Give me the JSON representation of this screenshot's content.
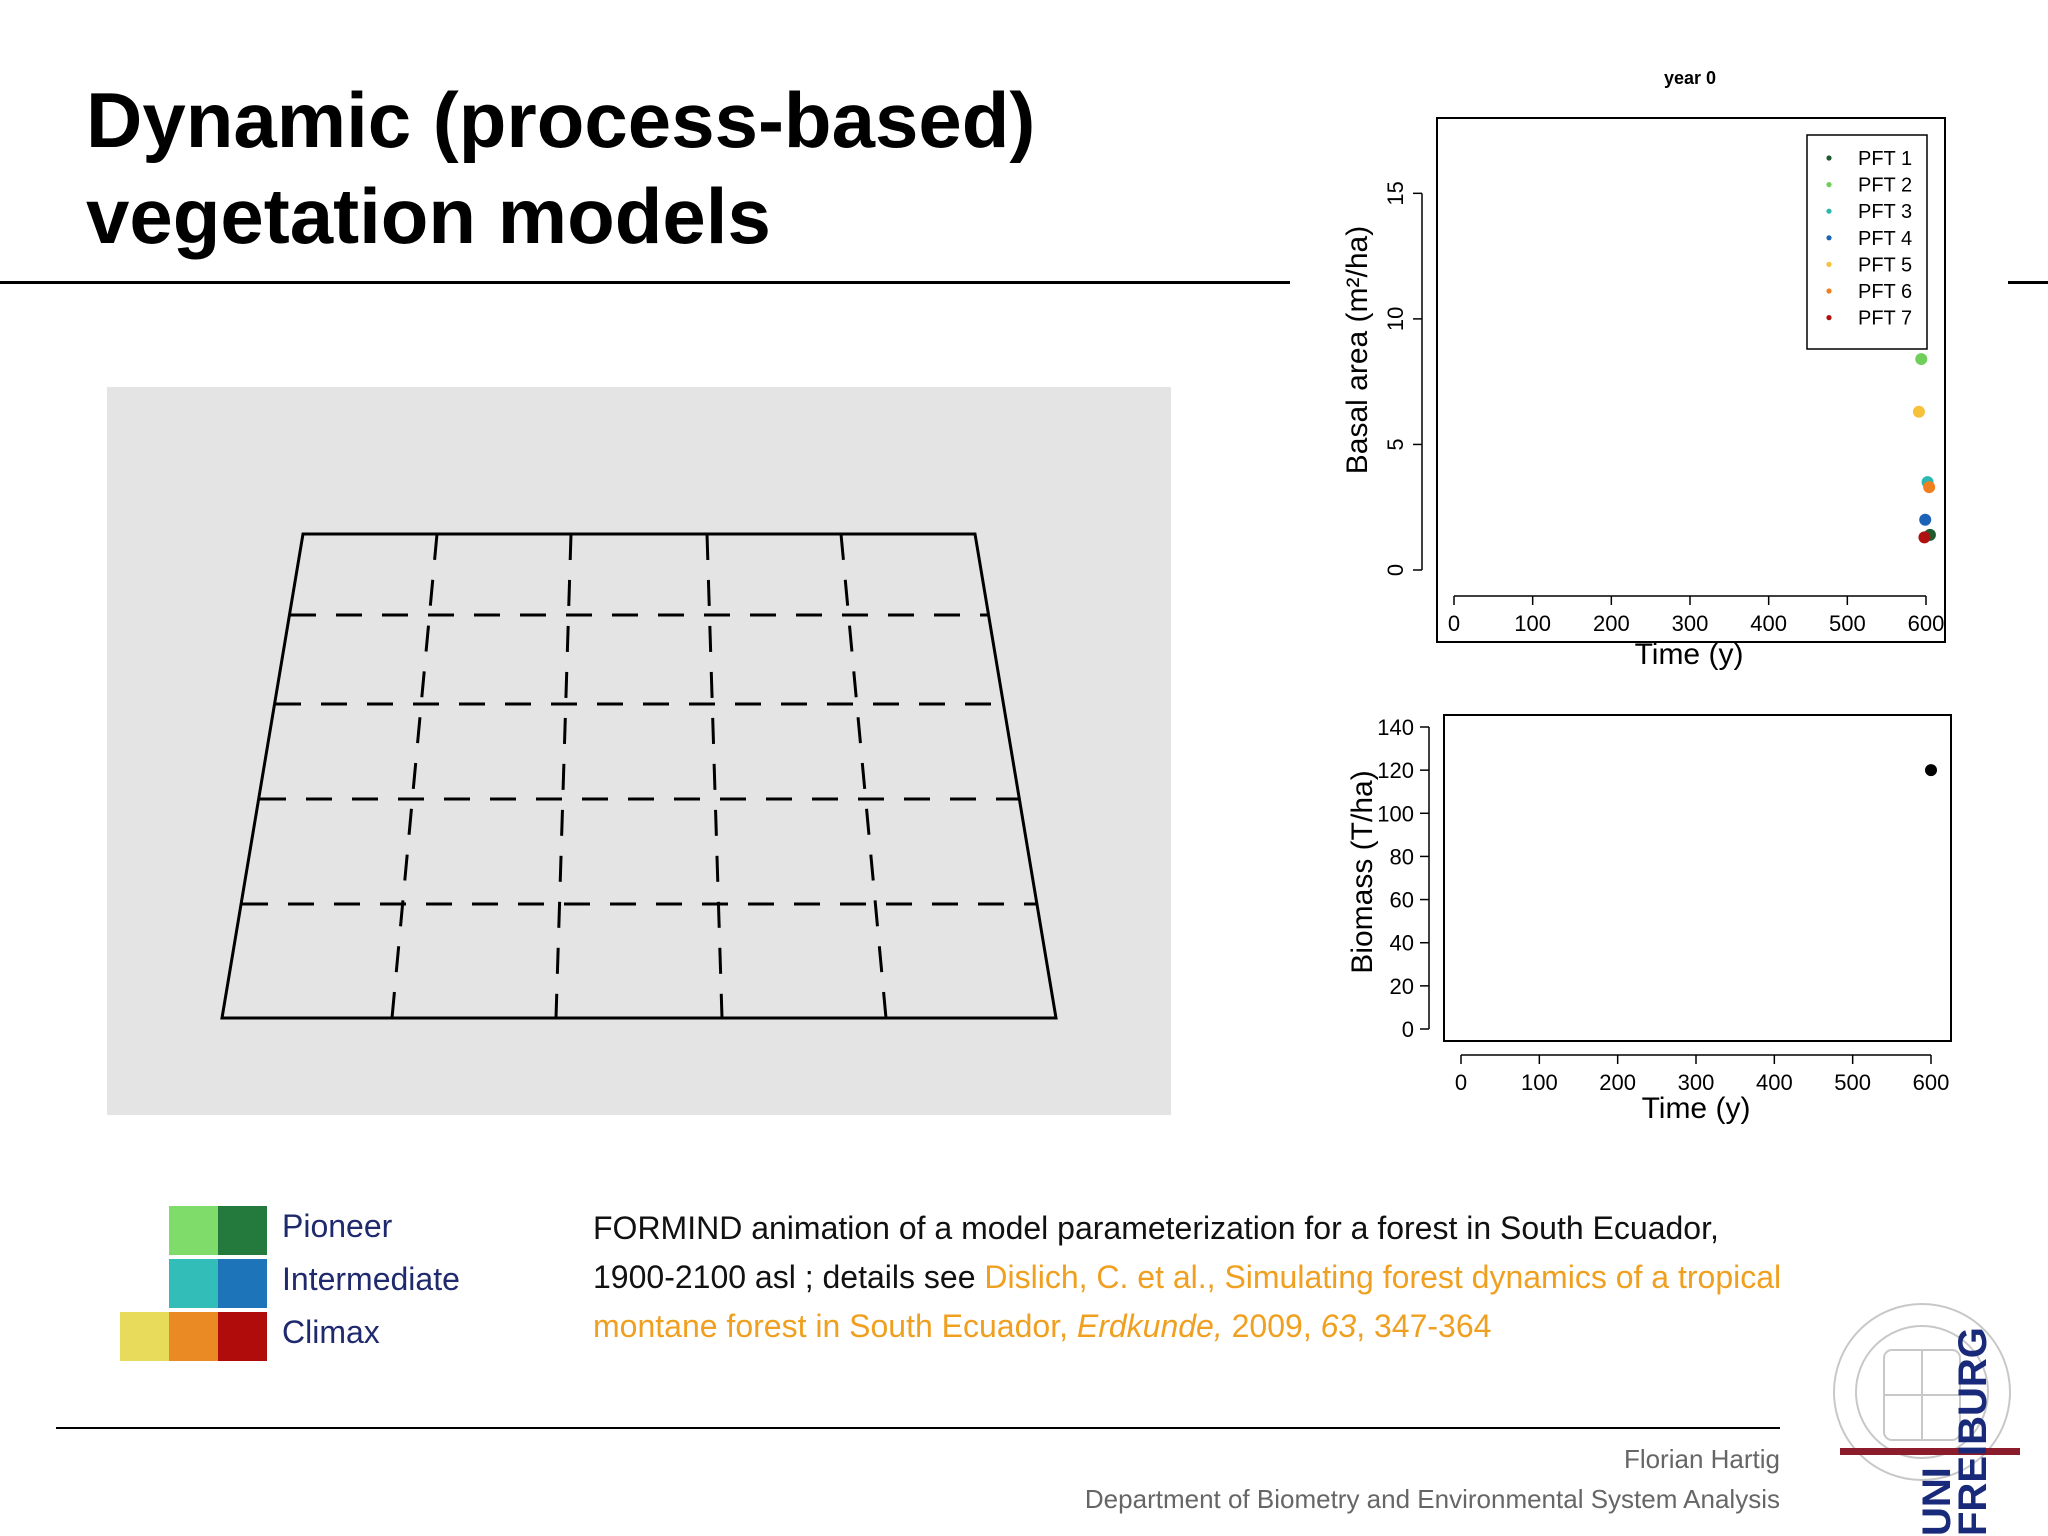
{
  "slide": {
    "title_line1": "Dynamic (process-based)",
    "title_line2": "vegetation models"
  },
  "chart_data": [
    {
      "type": "scatter",
      "title": "year 0",
      "xlabel": "Time (y)",
      "ylabel": "Basal area (m²/ha)",
      "xlim": [
        0,
        600
      ],
      "ylim": [
        0,
        18
      ],
      "xticks": [
        0,
        100,
        200,
        300,
        400,
        500,
        600
      ],
      "yticks": [
        0,
        5,
        10,
        15
      ],
      "legend_placement": "top-right",
      "series": [
        {
          "name": "PFT 1",
          "color": "#1f5a2e",
          "x": [
            605
          ],
          "y": [
            1.4
          ]
        },
        {
          "name": "PFT 2",
          "color": "#6fcf5a",
          "x": [
            594
          ],
          "y": [
            8.4
          ]
        },
        {
          "name": "PFT 3",
          "color": "#2ab8b0",
          "x": [
            602
          ],
          "y": [
            3.5
          ]
        },
        {
          "name": "PFT 4",
          "color": "#1b62b8",
          "x": [
            599
          ],
          "y": [
            2.0
          ]
        },
        {
          "name": "PFT 5",
          "color": "#f5c23a",
          "x": [
            591
          ],
          "y": [
            6.3
          ]
        },
        {
          "name": "PFT 6",
          "color": "#f07f20",
          "x": [
            604
          ],
          "y": [
            3.3
          ]
        },
        {
          "name": "PFT 7",
          "color": "#b01010",
          "x": [
            598
          ],
          "y": [
            1.3
          ]
        }
      ]
    },
    {
      "type": "scatter",
      "xlabel": "Time (y)",
      "ylabel": "Biomass (T/ha)",
      "xlim": [
        0,
        600
      ],
      "ylim": [
        0,
        140
      ],
      "xticks": [
        0,
        100,
        200,
        300,
        400,
        500,
        600
      ],
      "yticks": [
        0,
        20,
        40,
        60,
        80,
        100,
        120,
        140
      ],
      "series": [
        {
          "color": "#000000",
          "x": [
            600
          ],
          "y": [
            120
          ]
        }
      ]
    }
  ],
  "pft_groups": [
    {
      "label": "Pioneer",
      "colors": [
        "#7fdc6a",
        "#237a3c"
      ]
    },
    {
      "label": "Intermediate",
      "colors": [
        "#33bdb8",
        "#1d74b8"
      ]
    },
    {
      "label": "Climax",
      "colors": [
        "#e8da5a",
        "#ea8a24",
        "#b00c0c"
      ]
    }
  ],
  "caption": {
    "line1": "FORMIND animation of a model parameterization for a forest in South Ecuador,",
    "line2_plain": "1900-2100 asl ; details see ",
    "ref_authors": "Dislich, C. et al., Simulating forest dynamics of a tropical",
    "ref_line3": "montane forest in South Ecuador, ",
    "ref_journal": "Erdkunde,",
    "ref_year": " 2009, ",
    "ref_volume": "63",
    "ref_pages": ", 347-364",
    "ref_color": "#f0a020"
  },
  "footer": {
    "author": "Florian Hartig",
    "department": "Department of Biometry and Environmental System Analysis",
    "logo_text_1": "UNI",
    "logo_text_2": "FREIBURG"
  }
}
